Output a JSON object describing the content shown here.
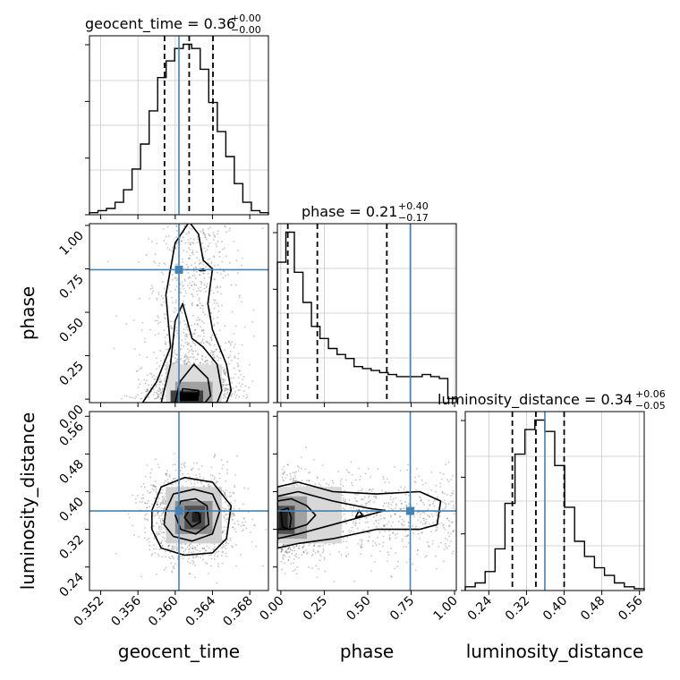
{
  "chart_data": {
    "type": "scatter",
    "parameters": [
      "geocent_time",
      "phase",
      "luminosity_distance"
    ],
    "truths": {
      "geocent_time": 0.3604,
      "phase": 0.745,
      "luminosity_distance": 0.359
    },
    "colors": {
      "truth": "#4682b4",
      "hist": "#000000",
      "grid": "#c8c8c8",
      "points": "#5a5a5a"
    },
    "titles": {
      "geocent_time": {
        "label": "geocent_time = 0.36",
        "plus": "+0.00",
        "minus": "−0.00"
      },
      "phase": {
        "label": "phase = 0.21",
        "plus": "+0.40",
        "minus": "−0.17"
      },
      "luminosity_distance": {
        "label": "luminosity_distance = 0.34",
        "plus": "+0.06",
        "minus": "−0.05"
      }
    },
    "xlabels": {
      "geocent_time": "geocent_time",
      "phase": "phase",
      "luminosity_distance": "luminosity_distance"
    },
    "ylabels": {
      "phase": "phase",
      "luminosity_distance": "luminosity_distance"
    },
    "axes": {
      "geocent_time": {
        "range": [
          0.3508,
          0.37
        ],
        "ticks": [
          "0.352",
          "0.356",
          "0.360",
          "0.364",
          "0.368"
        ],
        "tick_values": [
          0.352,
          0.356,
          0.36,
          0.364,
          0.368
        ]
      },
      "phase": {
        "range": [
          -0.02,
          1.01
        ],
        "ticks": [
          "0.00",
          "0.25",
          "0.50",
          "0.75",
          "1.00"
        ],
        "tick_values": [
          0.0,
          0.25,
          0.5,
          0.75,
          1.0
        ]
      },
      "luminosity_distance": {
        "range": [
          0.19,
          0.57
        ],
        "ticks": [
          "0.24",
          "0.32",
          "0.40",
          "0.48",
          "0.56"
        ],
        "tick_values": [
          0.24,
          0.32,
          0.4,
          0.48,
          0.56
        ]
      }
    },
    "quantiles": {
      "geocent_time": [
        0.35885,
        0.3615,
        0.36405
      ],
      "phase": [
        0.04,
        0.21,
        0.61
      ],
      "luminosity_distance": [
        0.29,
        0.34,
        0.4
      ]
    },
    "histograms": {
      "geocent_time": [
        1,
        2,
        3,
        6,
        12,
        22,
        34,
        50,
        66,
        74,
        80,
        82,
        80,
        70,
        54,
        40,
        28,
        15,
        6,
        2,
        1
      ],
      "phase": [
        70,
        85,
        65,
        50,
        38,
        32,
        27,
        24,
        22,
        18,
        17,
        16,
        15,
        14,
        13,
        13,
        13,
        14,
        13,
        12,
        2
      ],
      "luminosity_distance": [
        2,
        4,
        10,
        22,
        46,
        72,
        85,
        90,
        84,
        66,
        44,
        26,
        18,
        12,
        8,
        4,
        2,
        1
      ]
    }
  }
}
